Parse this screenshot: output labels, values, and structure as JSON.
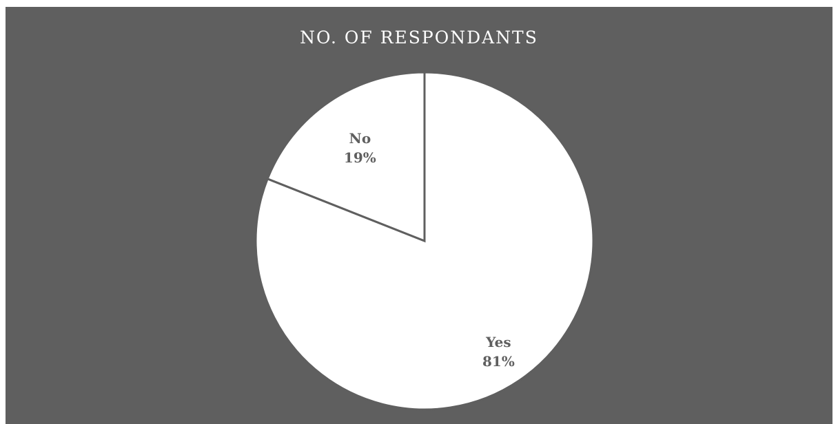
{
  "chart_data": {
    "type": "pie",
    "title": "NO. OF RESPONDANTS",
    "categories": [
      "Yes",
      "No"
    ],
    "values": [
      81,
      19
    ],
    "data_labels": [
      {
        "category": "Yes",
        "percent": "81%"
      },
      {
        "category": "No",
        "percent": "19%"
      }
    ],
    "colors": {
      "background": "#5f5f5f",
      "slice_fill": "#ffffff",
      "slice_border": "#5f5f5f",
      "label_text": "#5f5f5f"
    }
  }
}
